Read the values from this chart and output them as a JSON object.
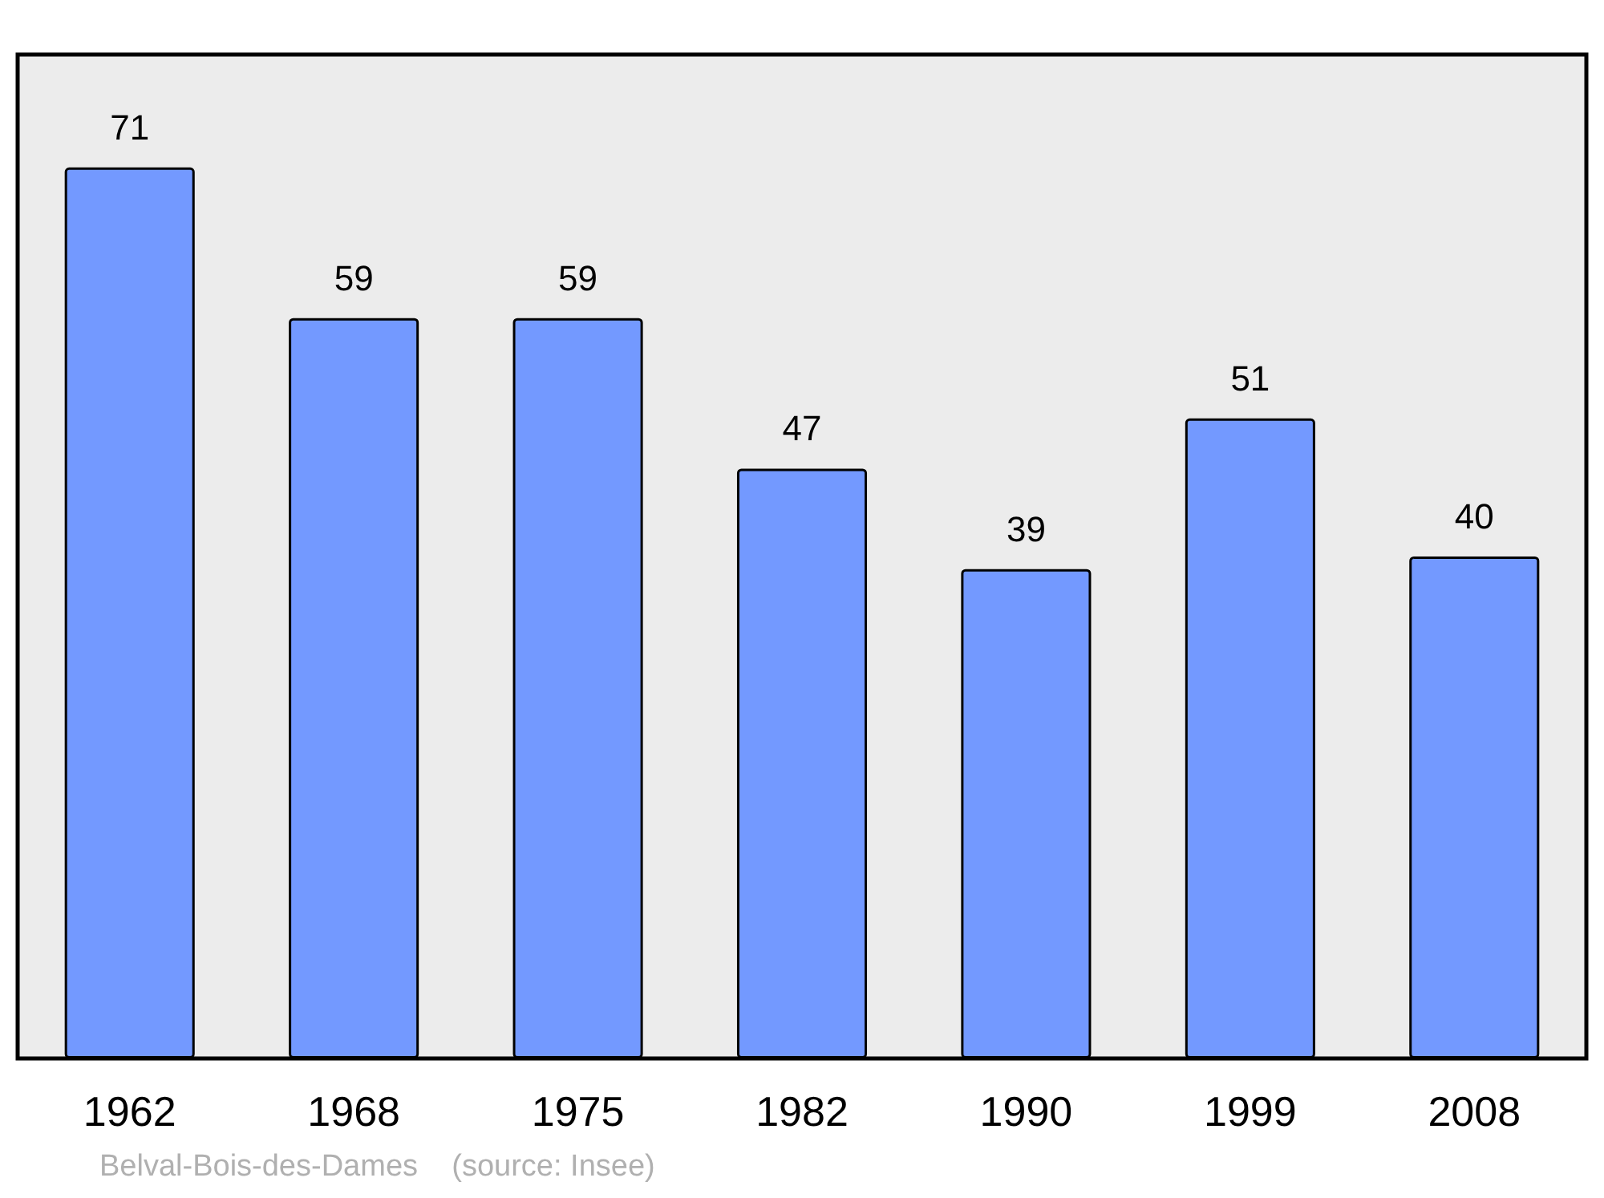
{
  "chart_data": {
    "type": "bar",
    "categories": [
      "1962",
      "1968",
      "1975",
      "1982",
      "1990",
      "1999",
      "2008"
    ],
    "values": [
      71,
      59,
      59,
      47,
      39,
      51,
      40
    ],
    "color": "#7399ff",
    "data_labels": true,
    "annotations": [
      "Belval-Bois-des-Dames    (source: Insee)"
    ]
  }
}
